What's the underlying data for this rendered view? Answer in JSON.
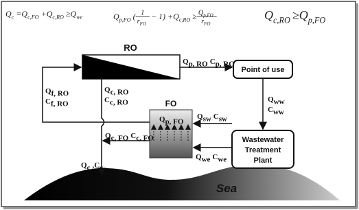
{
  "equations": [
    [
      {
        "b": "Q",
        "sub": "c"
      },
      {
        "b": " = "
      },
      {
        "b": "Q",
        "sub": "c,FO"
      },
      {
        "b": " + "
      },
      {
        "b": "Q",
        "sub": "c,RO"
      },
      {
        "b": " ≥ "
      },
      {
        "b": "Q",
        "sub": "we"
      }
    ],
    [
      {
        "b": "Q",
        "sub": "p,FO"
      },
      {
        "b": "("
      },
      {
        "num": [
          {
            "b": "1"
          }
        ],
        "den": [
          {
            "b": "r",
            "sub": "FO"
          }
        ]
      },
      {
        "b": " − 1) + "
      },
      {
        "b": "Q",
        "sub": "c,RO"
      },
      {
        "b": " ≥ "
      },
      {
        "num": [
          {
            "b": "Q",
            "sub": "p,FO"
          }
        ],
        "den": [
          {
            "b": "r",
            "sub": "FO"
          }
        ]
      }
    ],
    [
      {
        "b": "Q",
        "sub": "c,RO"
      },
      {
        "b": "≥"
      },
      {
        "b": "Q",
        "sub": "p,FO"
      }
    ]
  ],
  "nodes": {
    "ro": "RO",
    "fo": "FO",
    "point_of_use": "Point of use",
    "wwtp": [
      "Wastewater",
      "Treatment",
      "Plant"
    ],
    "sea": "Sea"
  },
  "flows": [
    [
      {
        "b": "Q",
        "sub": "p, RO"
      },
      {
        "b": "C",
        "sub": "p, RO"
      }
    ],
    [
      {
        "b": "Q",
        "sub": "f, RO"
      }
    ],
    [
      {
        "b": "C",
        "sub": "f, RO"
      }
    ],
    [
      {
        "b": "Q",
        "sub": "c, RO"
      }
    ],
    [
      {
        "b": "C",
        "sub": "c, RO"
      }
    ],
    [
      {
        "b": "Q",
        "sub": "ww"
      }
    ],
    [
      {
        "b": "C",
        "sub": "ww"
      }
    ],
    [
      {
        "b": "Q",
        "sub": "sw"
      },
      {
        "b": "C",
        "sub": "sw"
      }
    ],
    [
      {
        "b": "Q",
        "sub": "p, FO"
      }
    ],
    [
      {
        "b": "Q",
        "sub": "c, FO"
      },
      {
        "b": "C",
        "sub": "c, FO"
      }
    ],
    [
      {
        "b": "Q",
        "sub": "we"
      },
      {
        "b": "C",
        "sub": "we"
      }
    ],
    [
      {
        "b": "Q",
        "sub": "c"
      },
      {
        "b": ",C",
        "sub": "c"
      }
    ]
  ]
}
